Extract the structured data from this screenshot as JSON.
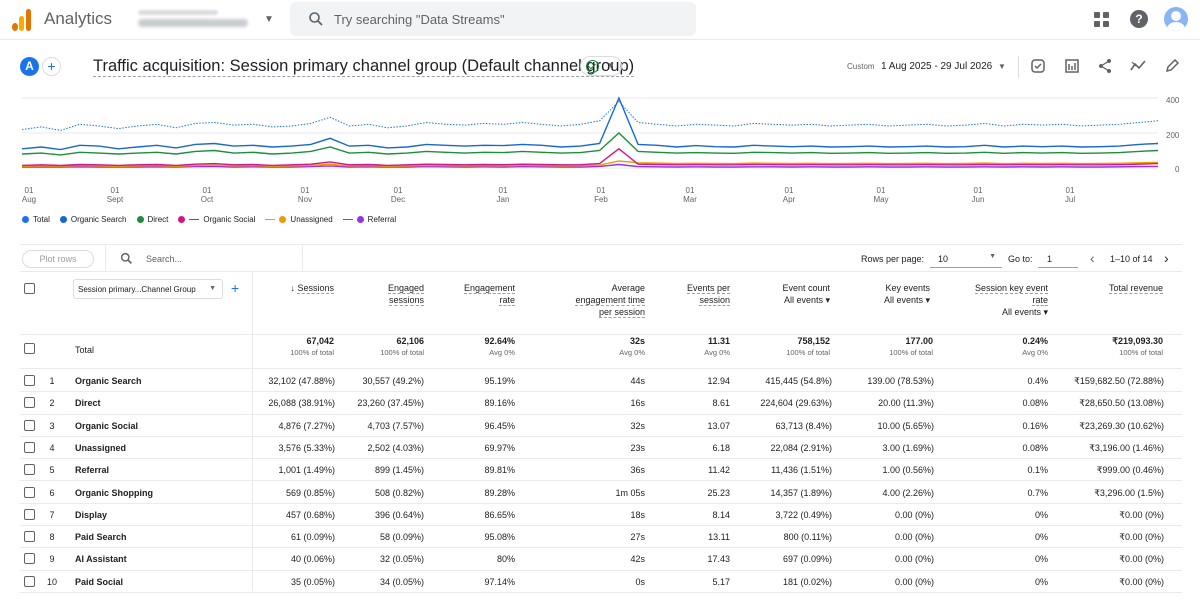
{
  "header": {
    "app_name": "Analytics",
    "search_placeholder": "Try searching \"Data Streams\""
  },
  "report": {
    "title": "Traffic acquisition: Session primary channel group (Default channel group)",
    "custom_label": "Custom",
    "date_range": "1 Aug 2025 - 29 Jul 2026",
    "comparison_badge": "A"
  },
  "colors": {
    "total": "#1a73e8",
    "organic_search": "#1967d2",
    "direct": "#1e8e3e",
    "organic_social": "#d01884",
    "unassigned": "#f29900",
    "referral": "#9334e6"
  },
  "chart_data": {
    "type": "line",
    "y_ticks": [
      "400",
      "200",
      "0"
    ],
    "x_ticks": [
      [
        "01",
        "Aug"
      ],
      [
        "01",
        "Sept"
      ],
      [
        "01",
        "Oct"
      ],
      [
        "01",
        "Nov"
      ],
      [
        "01",
        "Dec"
      ],
      [
        "01",
        "Jan"
      ],
      [
        "01",
        "Feb"
      ],
      [
        "01",
        "Mar"
      ],
      [
        "01",
        "Apr"
      ],
      [
        "01",
        "May"
      ],
      [
        "01",
        "Jun"
      ],
      [
        "01",
        "Jul"
      ]
    ],
    "ylim": [
      0,
      400
    ],
    "grid": true,
    "legend_position": "bottom-left",
    "series": [
      {
        "name": "Total",
        "style": "dotted",
        "color": "#1a73e8",
        "values": [
          220,
          235,
          215,
          250,
          240,
          225,
          240,
          250,
          230,
          255,
          260,
          245,
          250,
          235,
          240,
          255,
          290,
          240,
          250,
          230,
          240,
          260,
          250,
          245,
          255,
          250,
          260,
          250,
          240,
          250,
          270,
          380,
          260,
          250,
          240,
          250,
          245,
          240,
          255,
          250,
          245,
          250,
          240,
          245,
          250,
          240,
          245,
          250,
          240,
          245,
          255,
          240,
          250,
          245,
          250,
          240,
          245,
          250,
          260,
          270
        ]
      },
      {
        "name": "Organic Search",
        "style": "solid",
        "color": "#1967d2",
        "values": [
          110,
          120,
          105,
          130,
          125,
          110,
          120,
          130,
          115,
          135,
          140,
          125,
          130,
          120,
          125,
          135,
          170,
          125,
          130,
          115,
          120,
          135,
          130,
          125,
          130,
          128,
          135,
          130,
          120,
          125,
          140,
          410,
          135,
          130,
          120,
          128,
          122,
          120,
          130,
          125,
          122,
          125,
          120,
          122,
          125,
          120,
          122,
          125,
          120,
          122,
          130,
          120,
          125,
          122,
          125,
          120,
          122,
          125,
          135,
          140
        ]
      },
      {
        "name": "Direct",
        "style": "solid",
        "color": "#1e8e3e",
        "values": [
          80,
          85,
          75,
          90,
          85,
          80,
          85,
          90,
          80,
          95,
          100,
          85,
          90,
          80,
          85,
          95,
          120,
          85,
          90,
          80,
          85,
          95,
          90,
          85,
          90,
          88,
          95,
          90,
          85,
          88,
          100,
          200,
          95,
          90,
          85,
          88,
          85,
          84,
          90,
          88,
          85,
          88,
          84,
          85,
          88,
          84,
          85,
          88,
          84,
          85,
          90,
          84,
          88,
          85,
          88,
          84,
          85,
          88,
          95,
          100
        ]
      },
      {
        "name": "Organic Social",
        "style": "solid",
        "color": "#d01884",
        "values": [
          15,
          18,
          14,
          20,
          18,
          15,
          18,
          20,
          15,
          22,
          25,
          18,
          20,
          15,
          18,
          22,
          35,
          18,
          20,
          15,
          18,
          22,
          20,
          18,
          20,
          19,
          22,
          20,
          18,
          19,
          25,
          110,
          22,
          20,
          18,
          19,
          18,
          18,
          20,
          19,
          18,
          19,
          18,
          18,
          19,
          18,
          18,
          19,
          18,
          18,
          20,
          18,
          19,
          18,
          19,
          18,
          18,
          19,
          22,
          25
        ]
      },
      {
        "name": "Unassigned",
        "style": "solid",
        "color": "#f29900",
        "values": [
          10,
          12,
          10,
          14,
          12,
          10,
          12,
          14,
          10,
          15,
          16,
          12,
          14,
          10,
          12,
          15,
          22,
          12,
          14,
          10,
          12,
          15,
          14,
          12,
          14,
          13,
          15,
          14,
          12,
          13,
          16,
          40,
          30,
          28,
          26,
          27,
          26,
          25,
          28,
          27,
          26,
          27,
          25,
          26,
          27,
          25,
          26,
          27,
          25,
          26,
          28,
          25,
          27,
          26,
          27,
          25,
          26,
          27,
          30,
          32
        ]
      },
      {
        "name": "Referral",
        "style": "solid",
        "color": "#9334e6",
        "values": [
          5,
          6,
          5,
          7,
          6,
          5,
          6,
          7,
          5,
          8,
          9,
          6,
          7,
          5,
          6,
          8,
          12,
          6,
          7,
          5,
          6,
          8,
          7,
          6,
          7,
          6,
          8,
          7,
          6,
          6,
          9,
          20,
          8,
          7,
          6,
          7,
          6,
          6,
          7,
          7,
          6,
          7,
          6,
          6,
          7,
          6,
          6,
          7,
          6,
          6,
          7,
          6,
          7,
          6,
          7,
          6,
          6,
          7,
          8,
          9
        ]
      }
    ]
  },
  "toolbar": {
    "plot_rows": "Plot rows",
    "search_placeholder": "Search...",
    "rows_per_page_label": "Rows per page:",
    "rows_per_page": "10",
    "goto_label": "Go to:",
    "goto_value": "1",
    "page_info": "1–10 of 14"
  },
  "table": {
    "dimension": "Session primary...Channel Group",
    "columns": {
      "sessions": "Sessions",
      "engaged1": "Engaged",
      "engaged2": "sessions",
      "er1": "Engagement",
      "er2": "rate",
      "aet1": "Average",
      "aet2": "engagement time",
      "aet3": "per session",
      "eps1": "Events per",
      "eps2": "session",
      "ec1": "Event count",
      "ec2": "All events",
      "ke1": "Key events",
      "ke2": "All events",
      "sker1": "Session key event",
      "sker2": "rate",
      "sker3": "All events",
      "rev": "Total revenue"
    },
    "totals": {
      "label": "Total",
      "sessions": "67,042",
      "sessions_p": "100% of total",
      "engaged": "62,106",
      "engaged_p": "100% of total",
      "er": "92.64%",
      "er_p": "Avg 0%",
      "aet": "32s",
      "aet_p": "Avg 0%",
      "eps": "11.31",
      "eps_p": "Avg 0%",
      "ec": "758,152",
      "ec_p": "100% of total",
      "ke": "177.00",
      "ke_p": "100% of total",
      "sker": "0.24%",
      "sker_p": "Avg 0%",
      "rev": "₹219,093.30",
      "rev_p": "100% of total"
    },
    "rows": [
      {
        "n": "1",
        "name": "Organic Search",
        "sessions": "32,102",
        "sessions_p": "(47.88%)",
        "engaged": "30,557",
        "engaged_p": "(49.2%)",
        "er": "95.19%",
        "aet": "44s",
        "eps": "12.94",
        "ec": "415,445",
        "ec_p": "(54.8%)",
        "ke": "139.00",
        "ke_p": "(78.53%)",
        "sker": "0.4%",
        "rev": "₹159,682.50",
        "rev_p": "(72.88%)"
      },
      {
        "n": "2",
        "name": "Direct",
        "sessions": "26,088",
        "sessions_p": "(38.91%)",
        "engaged": "23,260",
        "engaged_p": "(37.45%)",
        "er": "89.16%",
        "aet": "16s",
        "eps": "8.61",
        "ec": "224,604",
        "ec_p": "(29.63%)",
        "ke": "20.00",
        "ke_p": "(11.3%)",
        "sker": "0.08%",
        "rev": "₹28,650.50",
        "rev_p": "(13.08%)"
      },
      {
        "n": "3",
        "name": "Organic Social",
        "sessions": "4,876",
        "sessions_p": "(7.27%)",
        "engaged": "4,703",
        "engaged_p": "(7.57%)",
        "er": "96.45%",
        "aet": "32s",
        "eps": "13.07",
        "ec": "63,713",
        "ec_p": "(8.4%)",
        "ke": "10.00",
        "ke_p": "(5.65%)",
        "sker": "0.16%",
        "rev": "₹23,269.30",
        "rev_p": "(10.62%)"
      },
      {
        "n": "4",
        "name": "Unassigned",
        "sessions": "3,576",
        "sessions_p": "(5.33%)",
        "engaged": "2,502",
        "engaged_p": "(4.03%)",
        "er": "69.97%",
        "aet": "23s",
        "eps": "6.18",
        "ec": "22,084",
        "ec_p": "(2.91%)",
        "ke": "3.00",
        "ke_p": "(1.69%)",
        "sker": "0.08%",
        "rev": "₹3,196.00",
        "rev_p": "(1.46%)"
      },
      {
        "n": "5",
        "name": "Referral",
        "sessions": "1,001",
        "sessions_p": "(1.49%)",
        "engaged": "899",
        "engaged_p": "(1.45%)",
        "er": "89.81%",
        "aet": "36s",
        "eps": "11.42",
        "ec": "11,436",
        "ec_p": "(1.51%)",
        "ke": "1.00",
        "ke_p": "(0.56%)",
        "sker": "0.1%",
        "rev": "₹999.00",
        "rev_p": "(0.46%)"
      },
      {
        "n": "6",
        "name": "Organic Shopping",
        "sessions": "569",
        "sessions_p": "(0.85%)",
        "engaged": "508",
        "engaged_p": "(0.82%)",
        "er": "89.28%",
        "aet": "1m 05s",
        "eps": "25.23",
        "ec": "14,357",
        "ec_p": "(1.89%)",
        "ke": "4.00",
        "ke_p": "(2.26%)",
        "sker": "0.7%",
        "rev": "₹3,296.00",
        "rev_p": "(1.5%)"
      },
      {
        "n": "7",
        "name": "Display",
        "sessions": "457",
        "sessions_p": "(0.68%)",
        "engaged": "396",
        "engaged_p": "(0.64%)",
        "er": "86.65%",
        "aet": "18s",
        "eps": "8.14",
        "ec": "3,722",
        "ec_p": "(0.49%)",
        "ke": "0.00",
        "ke_p": "(0%)",
        "sker": "0%",
        "rev": "₹0.00",
        "rev_p": "(0%)"
      },
      {
        "n": "8",
        "name": "Paid Search",
        "sessions": "61",
        "sessions_p": "(0.09%)",
        "engaged": "58",
        "engaged_p": "(0.09%)",
        "er": "95.08%",
        "aet": "27s",
        "eps": "13.11",
        "ec": "800",
        "ec_p": "(0.11%)",
        "ke": "0.00",
        "ke_p": "(0%)",
        "sker": "0%",
        "rev": "₹0.00",
        "rev_p": "(0%)"
      },
      {
        "n": "9",
        "name": "AI Assistant",
        "sessions": "40",
        "sessions_p": "(0.06%)",
        "engaged": "32",
        "engaged_p": "(0.05%)",
        "er": "80%",
        "aet": "42s",
        "eps": "17.43",
        "ec": "697",
        "ec_p": "(0.09%)",
        "ke": "0.00",
        "ke_p": "(0%)",
        "sker": "0%",
        "rev": "₹0.00",
        "rev_p": "(0%)"
      },
      {
        "n": "10",
        "name": "Paid Social",
        "sessions": "35",
        "sessions_p": "(0.05%)",
        "engaged": "34",
        "engaged_p": "(0.05%)",
        "er": "97.14%",
        "aet": "0s",
        "eps": "5.17",
        "ec": "181",
        "ec_p": "(0.02%)",
        "ke": "0.00",
        "ke_p": "(0%)",
        "sker": "0%",
        "rev": "₹0.00",
        "rev_p": "(0%)"
      }
    ]
  }
}
